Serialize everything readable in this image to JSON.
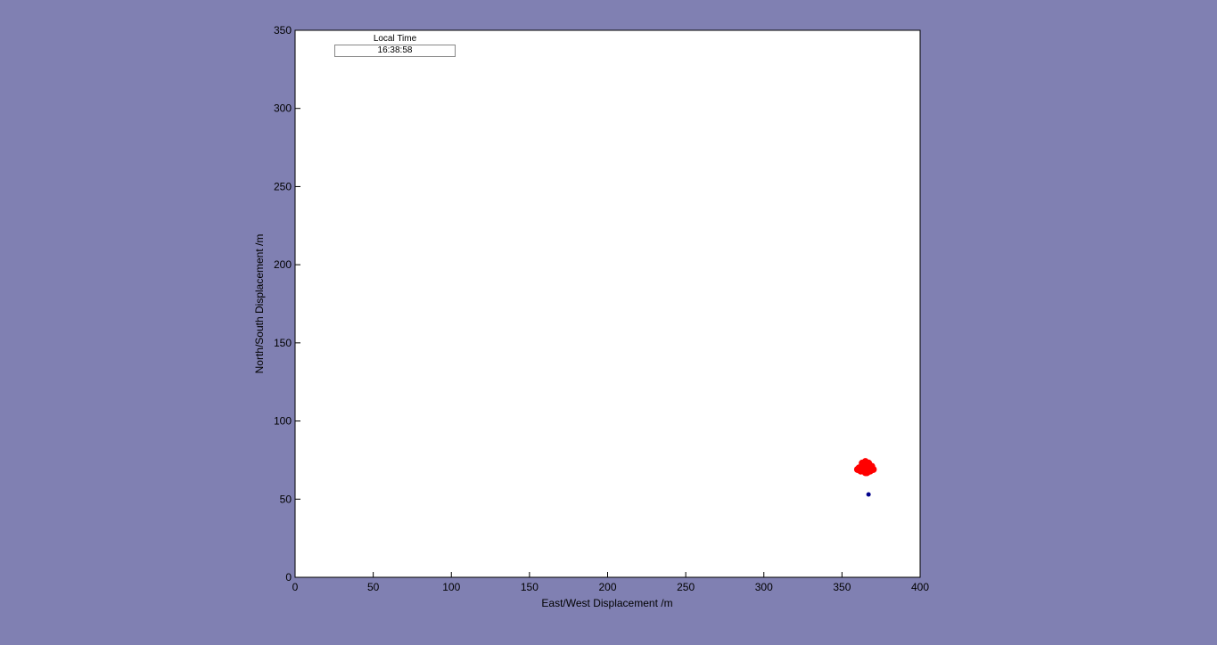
{
  "background_color": "#8080b2",
  "time_panel": {
    "title": "Local Time",
    "value": "16:38:58"
  },
  "chart_data": {
    "type": "scatter",
    "xlabel": "East/West Displacement /m",
    "ylabel": "North/South Displacement /m",
    "xlim": [
      0,
      400
    ],
    "ylim": [
      0,
      350
    ],
    "xticks": [
      0,
      50,
      100,
      150,
      200,
      250,
      300,
      350,
      400
    ],
    "yticks": [
      0,
      50,
      100,
      150,
      200,
      250,
      300,
      350
    ],
    "grid": false,
    "series": [
      {
        "color": "#ff0000",
        "points": [
          [
            362,
            70
          ],
          [
            363,
            69
          ],
          [
            364,
            71
          ],
          [
            365,
            70
          ],
          [
            366,
            68
          ],
          [
            367,
            69
          ],
          [
            368,
            70
          ],
          [
            369,
            69
          ],
          [
            364,
            73
          ],
          [
            365,
            74
          ],
          [
            363,
            72
          ],
          [
            366,
            72
          ],
          [
            367,
            71
          ],
          [
            361,
            70
          ],
          [
            362,
            68
          ],
          [
            365,
            67
          ],
          [
            368,
            68
          ],
          [
            370,
            69
          ],
          [
            366,
            67
          ],
          [
            364,
            68
          ],
          [
            363,
            73
          ],
          [
            367,
            73
          ],
          [
            369,
            71
          ],
          [
            360,
            69
          ]
        ]
      },
      {
        "color": "#00008b",
        "points": [
          [
            367,
            53
          ]
        ]
      }
    ]
  }
}
